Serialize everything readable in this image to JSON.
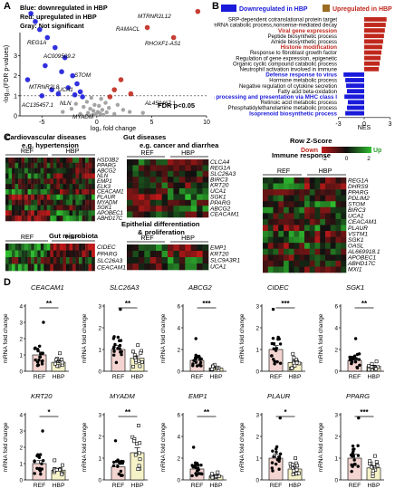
{
  "panel_labels": {
    "A": "A",
    "B": "B",
    "C": "C",
    "D": "D"
  },
  "colors": {
    "down": "#1a1adb",
    "up": "#c0281d",
    "gray": "#9a9a9a",
    "heat_low": "#c01818",
    "heat_mid": "#101010",
    "heat_high": "#2fbf2f"
  },
  "panelA": {
    "legend": [
      "Blue: downregulated in HBP",
      "Red: upregulated in HBP",
      "Gray: Not significant"
    ],
    "xlabel": "log₂ fold change",
    "ylabel": "-log₁₀(FDR p-values)",
    "fdr_label": "FDR p<0.05",
    "x_ticks": [
      "-5",
      "0",
      "5",
      "10"
    ],
    "y_ticks": [
      "0",
      "1",
      "2",
      "3",
      "4",
      "5"
    ],
    "gene_labels": [
      "MTRNR2L12",
      "RAMACL",
      "RHOXF1-AS1",
      "REG1A",
      "AC009509.2",
      "STOM",
      "MTRNR2L8",
      "UCA1",
      "AC135457.1",
      "NLN",
      "MYADM",
      "AL450467.1"
    ]
  },
  "chart_data": [
    {
      "type": "scatter",
      "title": "",
      "xlabel": "log₂ fold change",
      "ylabel": "-log₁₀(FDR p-values)",
      "xlim": [
        -7,
        10
      ],
      "ylim": [
        0,
        5.5
      ],
      "series": [
        {
          "name": "Blue: downregulated in HBP",
          "points": [
            [
              -6.0,
              5.1
            ],
            [
              -5.6,
              4.7
            ],
            [
              -5.2,
              4.3
            ],
            [
              -4.5,
              3.9
            ],
            [
              -3.8,
              3.4
            ],
            [
              -2.9,
              2.9
            ],
            [
              -4.7,
              2.5
            ],
            [
              -3.2,
              2.2
            ],
            [
              -2.2,
              2.0
            ],
            [
              -6.3,
              1.8
            ],
            [
              -1.8,
              1.6
            ],
            [
              -2.6,
              1.4
            ],
            [
              -4.1,
              1.3
            ],
            [
              -1.5,
              1.2
            ],
            [
              -3.5,
              1.1
            ],
            [
              -2.0,
              1.05
            ],
            [
              -5.0,
              1.0
            ],
            [
              -1.3,
              0.95
            ]
          ]
        },
        {
          "name": "Red: upregulated in HBP",
          "points": [
            [
              9.2,
              5.2
            ],
            [
              4.6,
              4.4
            ],
            [
              7.0,
              3.9
            ],
            [
              2.2,
              1.8
            ],
            [
              1.6,
              1.3
            ],
            [
              3.1,
              1.1
            ],
            [
              1.2,
              0.95
            ]
          ]
        },
        {
          "name": "Gray: Not significant",
          "points": [
            [
              -0.5,
              0.9
            ],
            [
              0.4,
              0.85
            ],
            [
              -0.9,
              0.7
            ],
            [
              0.8,
              0.65
            ],
            [
              -0.2,
              0.55
            ],
            [
              0.2,
              0.5
            ],
            [
              -1.2,
              0.45
            ],
            [
              1.1,
              0.4
            ],
            [
              -0.6,
              0.35
            ],
            [
              0.5,
              0.3
            ],
            [
              -0.3,
              0.25
            ],
            [
              0.1,
              0.2
            ],
            [
              0.9,
              0.18
            ],
            [
              -0.8,
              0.15
            ],
            [
              0.3,
              0.12
            ],
            [
              -1.5,
              0.1
            ],
            [
              1.6,
              0.1
            ],
            [
              -0.1,
              0.08
            ],
            [
              0.6,
              0.05
            ],
            [
              -0.4,
              0.04
            ],
            [
              2.4,
              0.3
            ],
            [
              -2.3,
              0.35
            ],
            [
              3.0,
              0.2
            ],
            [
              -3.1,
              0.2
            ],
            [
              4.2,
              0.15
            ],
            [
              -1.9,
              0.6
            ],
            [
              1.9,
              0.55
            ]
          ]
        }
      ]
    },
    {
      "type": "bar",
      "title": "",
      "xlabel": "NES",
      "ylabel": "",
      "xlim": [
        -3,
        3
      ],
      "x_ticks": [
        "-3",
        "0",
        "3"
      ],
      "legend": [
        "Downregulated in HBP",
        "Upregulated in HBP"
      ],
      "categories": [
        "SRP-dependent cotranslational protein target",
        "mRNA catabolic process,nonsense-mediated decay",
        "Viral gene expression",
        "Peptide biosynthetic process",
        "Amide biosynthetic process",
        "Histone modification",
        "Response to fibroblast growth factor",
        "Regulation of gene expression, epigenetic",
        "Organic cyclic compound catabolic process",
        "Neutrophil activation involved in immune",
        "Defense response to virus",
        "Hormone metabolic process",
        "Negative regulation of cytokine secretion",
        "Fatty acid beta-oxidation",
        "Antigen processing and presentation via MHC class I",
        "Retinoic acid metabolic process",
        "Phosphatidylethanolamine metabolic process",
        "Isoprenoid biosynthetic process"
      ],
      "values": [
        2.6,
        2.5,
        2.4,
        2.3,
        2.2,
        2.1,
        2.0,
        1.9,
        1.8,
        1.7,
        -2.4,
        -2.2,
        -2.1,
        -2.0,
        -2.3,
        -1.9,
        -2.0,
        -2.2
      ],
      "highlight": [
        "Viral gene expression",
        "Histone modification",
        "Defense response to virus",
        "Antigen processing and presentation via MHC class I",
        "Isoprenoid biosynthetic process"
      ]
    },
    {
      "type": "bar",
      "title": "",
      "ylabel": "mRNA fold change",
      "categories": [
        "REF",
        "HBP"
      ],
      "subplots": [
        {
          "gene": "CEACAM1",
          "sig": "**",
          "y_ticks": [
            "0",
            "1",
            "2",
            "3",
            "4"
          ],
          "ymax": 4,
          "values": [
            1.0,
            0.55
          ]
        },
        {
          "gene": "SLC26A3",
          "sig": "**",
          "y_ticks": [
            "0",
            "1",
            "2",
            "3"
          ],
          "ymax": 3,
          "values": [
            1.0,
            0.6
          ]
        },
        {
          "gene": "ABCG2",
          "sig": "***",
          "y_ticks": [
            "0",
            "2",
            "4",
            "6"
          ],
          "ymax": 6,
          "values": [
            1.0,
            0.3
          ]
        },
        {
          "gene": "CIDEC",
          "sig": "***",
          "y_ticks": [
            "0",
            "1",
            "2",
            "3"
          ],
          "ymax": 3,
          "values": [
            1.0,
            0.4
          ]
        },
        {
          "gene": "SGK1",
          "sig": "**",
          "y_ticks": [
            "0",
            "2",
            "4",
            "6"
          ],
          "ymax": 6,
          "values": [
            1.0,
            0.45
          ]
        },
        {
          "gene": "KRT20",
          "sig": "*",
          "y_ticks": [
            "0",
            "1",
            "2",
            "3",
            "4"
          ],
          "ymax": 4,
          "values": [
            1.0,
            0.6
          ]
        },
        {
          "gene": "MYADM",
          "sig": "**",
          "y_ticks": [
            "0",
            "1",
            "2",
            "3"
          ],
          "ymax": 3,
          "values": [
            0.6,
            1.25
          ]
        },
        {
          "gene": "EMP1",
          "sig": "**",
          "y_ticks": [
            "0",
            "2",
            "4",
            "6"
          ],
          "ymax": 6,
          "values": [
            1.0,
            0.35
          ]
        },
        {
          "gene": "PLAUR",
          "sig": "*",
          "y_ticks": [
            "0",
            "1",
            "2",
            "3"
          ],
          "ymax": 3,
          "values": [
            1.0,
            0.5
          ]
        },
        {
          "gene": "PPARG",
          "sig": "***",
          "y_ticks": [
            "0",
            "1",
            "2",
            "3"
          ],
          "ymax": 3,
          "values": [
            1.0,
            0.55
          ]
        }
      ]
    }
  ],
  "panelC": {
    "ref_label": "REF",
    "hbp_label": "HBP",
    "zscore": {
      "title": "Row Z-Score",
      "down": "Down",
      "up": "Up",
      "ticks": [
        "-2",
        "0",
        "2"
      ]
    },
    "blocks": [
      {
        "key": "cardio",
        "title": "Cardiovascular diseases",
        "subtitle": "e.g. hypertension",
        "genes": [
          "HSD3B2",
          "PPARG",
          "ABCG2",
          "NLN",
          "EMP1",
          "ELK3",
          "CEACAM1",
          "PLAUR",
          "MYADM",
          "SGK1",
          "APOBEC1",
          "ABHD17C"
        ]
      },
      {
        "key": "gut",
        "title": "Gut diseases",
        "subtitle": "e.g. cancer and diarrhea",
        "genes": [
          "CLCA4",
          "REG1A",
          "SLC26A3",
          "BIRC3",
          "KRT20",
          "UCA1",
          "SGK1",
          "PPARG",
          "ABCG2",
          "CEACAM1"
        ]
      },
      {
        "key": "immune",
        "title": "Immune response",
        "subtitle": "",
        "genes": [
          "REG1A",
          "DHRS9",
          "PPARG",
          "PDLIM2",
          "STOM",
          "BIRC3",
          "UCA1",
          "CEACAM1",
          "PLAUR",
          "VSTM1",
          "SGK1",
          "OASL",
          "AL669918.1",
          "APOBEC1",
          "ABHD17C",
          "MXI1"
        ]
      },
      {
        "key": "micro",
        "title": "Gut microbiota",
        "subtitle": "",
        "genes": [
          "CIDEC",
          "PPARG",
          "SLC26A3",
          "CEACAM1"
        ]
      },
      {
        "key": "epith",
        "title": "Epithelial differentiation",
        "subtitle": "& proliferation",
        "genes": [
          "EMP1",
          "KRT20",
          "SLC9A3R1",
          "UCA1"
        ]
      }
    ]
  }
}
